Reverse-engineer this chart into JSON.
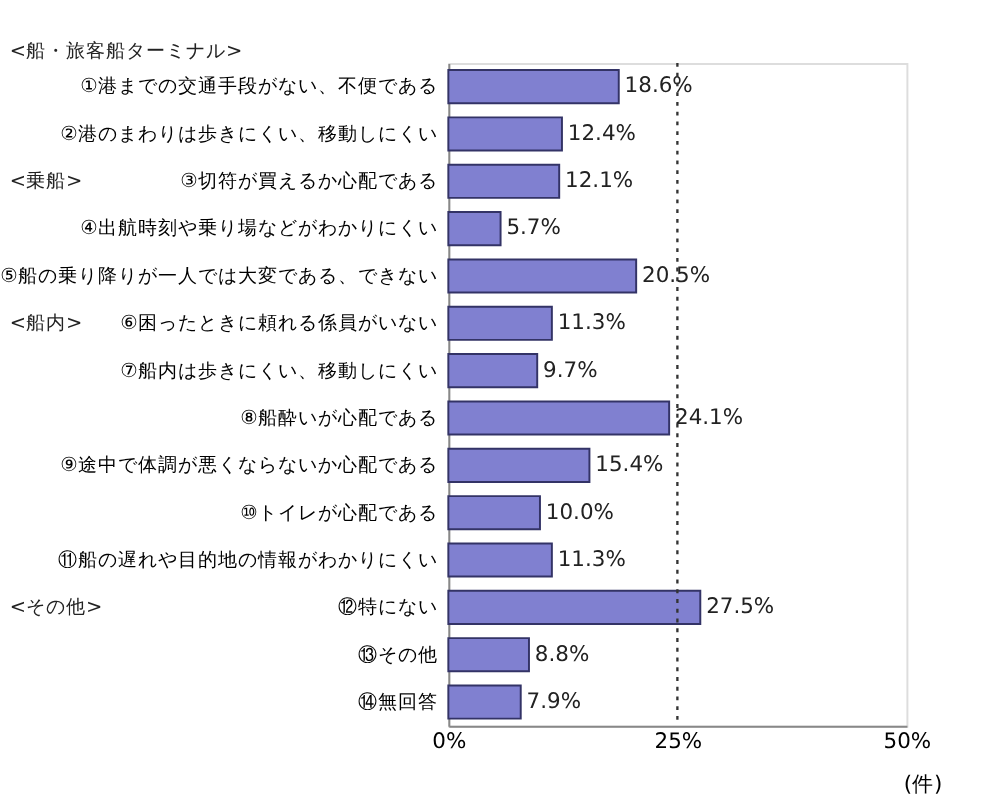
{
  "chart_data": {
    "type": "bar",
    "orientation": "horizontal",
    "categories": [
      "①港までの交通手段がない、不便である",
      "②港のまわりは歩きにくい、移動しにくい",
      "③切符が買えるか心配である",
      "④出航時刻や乗り場などがわかりにくい",
      "⑤船の乗り降りが一人では大変である、できない",
      "⑥困ったときに頼れる係員がいない",
      "⑦船内は歩きにくい、移動しにくい",
      "⑧船酔いが心配である",
      "⑨途中で体調が悪くならないか心配である",
      "⑩トイレが心配である",
      "⑪船の遅れや目的地の情報がわかりにくい",
      "⑫特にない",
      "⑬その他",
      "⑭無回答"
    ],
    "values": [
      18.6,
      12.4,
      12.1,
      5.7,
      20.5,
      11.3,
      9.7,
      24.1,
      15.4,
      10.0,
      11.3,
      27.5,
      8.8,
      7.9
    ],
    "value_labels": [
      "18.6%",
      "12.4%",
      "12.1%",
      "5.7%",
      "20.5%",
      "11.3%",
      "9.7%",
      "24.1%",
      "15.4%",
      "10.0%",
      "11.3%",
      "27.5%",
      "8.8%",
      "7.9%"
    ],
    "color": "#8080d0",
    "xlim": [
      0,
      50
    ],
    "xticks": [
      {
        "value": 0,
        "label": "0%"
      },
      {
        "value": 25,
        "label": "25%"
      },
      {
        "value": 50,
        "label": "50%"
      }
    ],
    "xlabel": "(件)",
    "grid": false,
    "ref_lines": [
      {
        "axis": "x",
        "value": 25,
        "label": null,
        "color": "#333333",
        "line_style": "dotted"
      }
    ],
    "annotations": [
      "<船・旅客船ターミナル>",
      "<乗船>",
      "<船内>",
      "<その他>"
    ]
  }
}
